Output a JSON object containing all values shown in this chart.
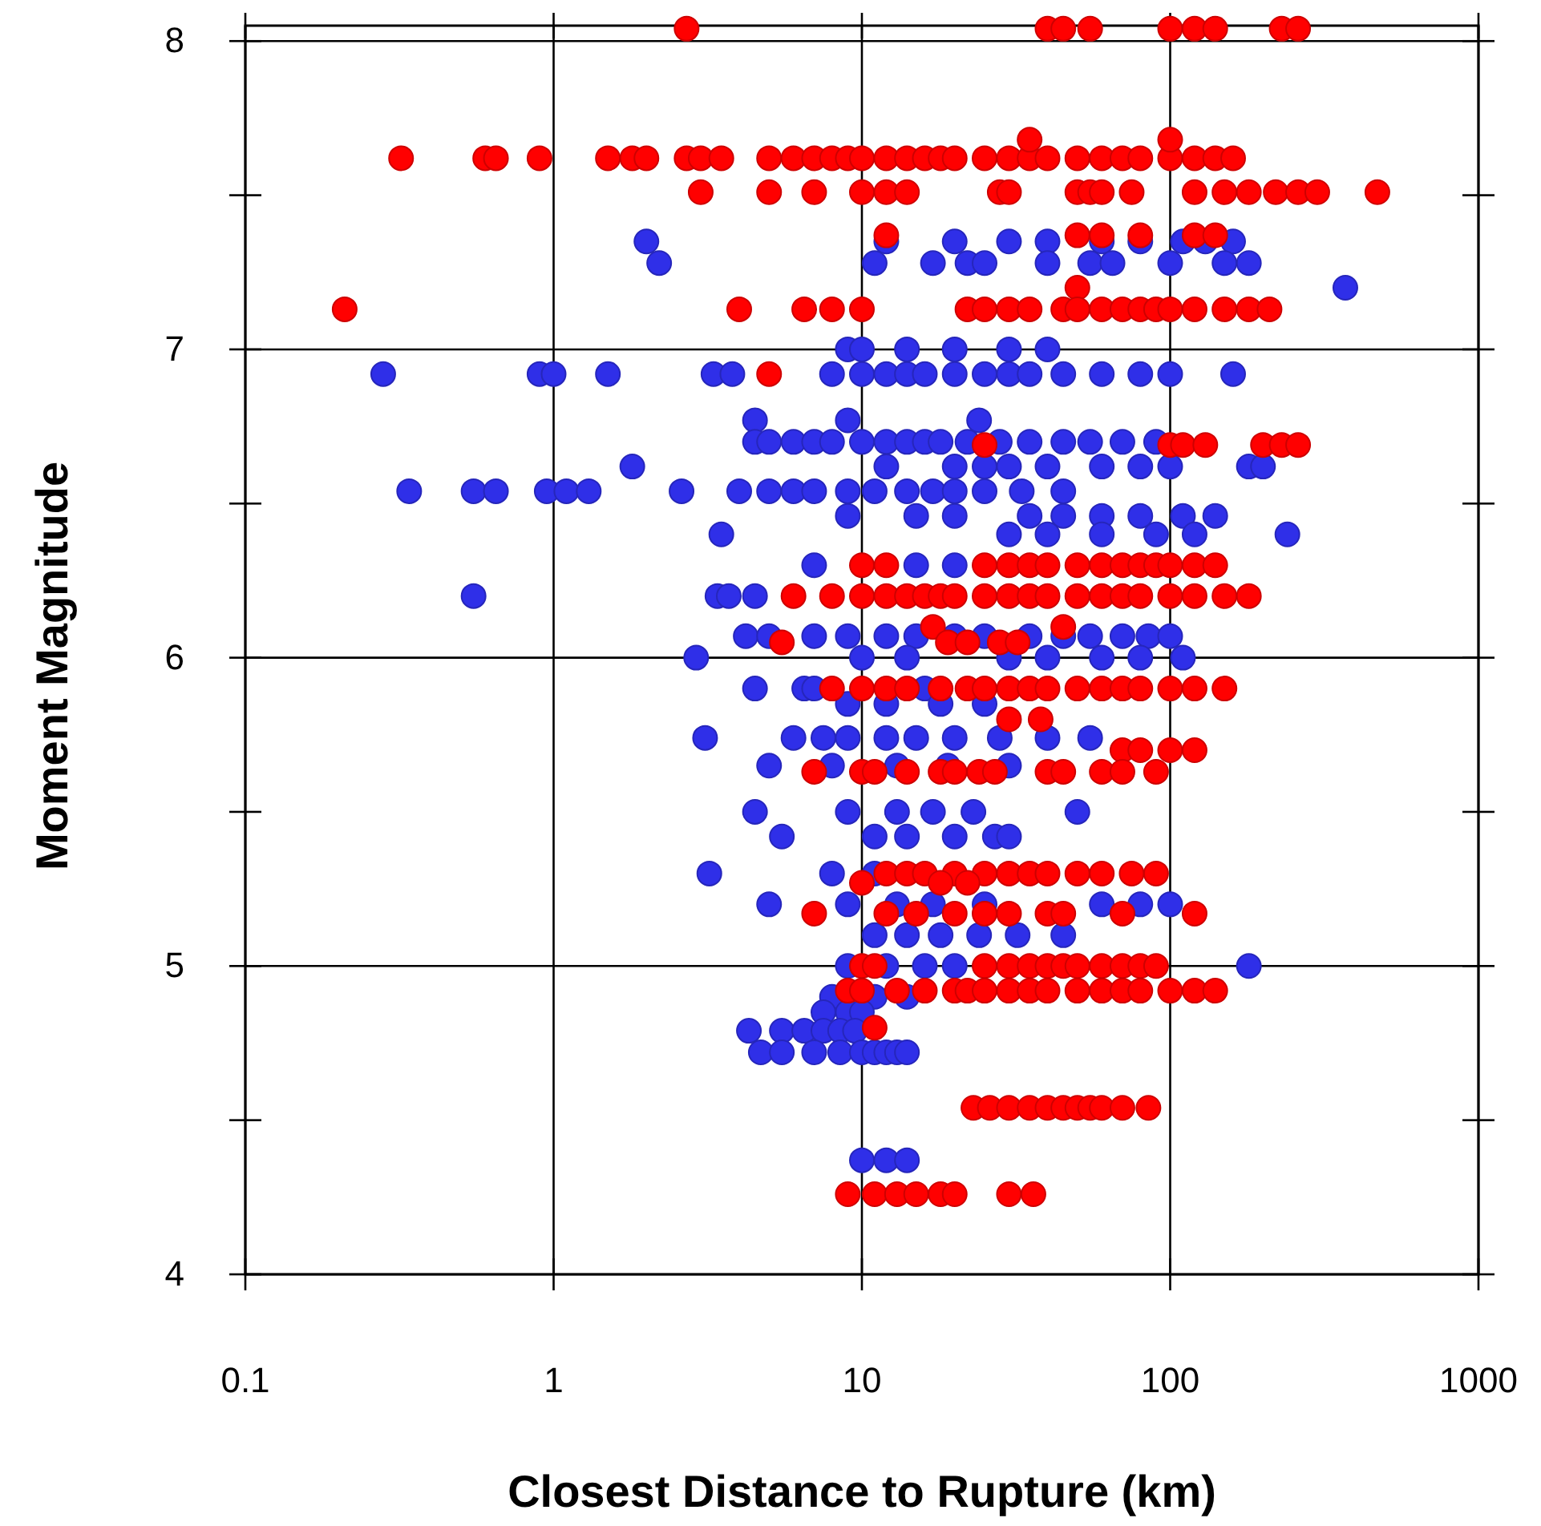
{
  "chart_data": {
    "type": "scatter",
    "xlabel": "Closest Distance to Rupture (km)",
    "ylabel": "Moment Magnitude",
    "log": "x",
    "grid": true,
    "marker": "circle",
    "xlim": [
      0.1,
      1000
    ],
    "xticks": [
      0.1,
      1,
      10,
      100,
      1000
    ],
    "ylim": [
      4,
      8.05
    ],
    "yticks": [
      4,
      {
        "value": 4.5,
        "label": null
      },
      5,
      {
        "value": 5.5,
        "label": null
      },
      6,
      {
        "value": 6.5,
        "label": null
      },
      7,
      {
        "value": 7.5,
        "label": null
      },
      8
    ],
    "series": [
      {
        "color": "#2f2fe8",
        "x": [
          2,
          12,
          20,
          30,
          40,
          60,
          80,
          110,
          130,
          160,
          2.2,
          11,
          17,
          22,
          25,
          40,
          55,
          65,
          100,
          150,
          180,
          370,
          9,
          10,
          14,
          20,
          30,
          40,
          0.28,
          0.9,
          1,
          1.5,
          3.3,
          3.8,
          8,
          10,
          12,
          14,
          16,
          20,
          25,
          30,
          35,
          45,
          60,
          80,
          100,
          160,
          4.5,
          9,
          24,
          4.5,
          5,
          6,
          7,
          8,
          10,
          12,
          14,
          16,
          18,
          22,
          28,
          35,
          45,
          55,
          70,
          90,
          1.8,
          12,
          20,
          25,
          30,
          40,
          60,
          80,
          100,
          180,
          200,
          0.34,
          0.55,
          0.65,
          0.95,
          1.1,
          1.3,
          2.6,
          4,
          5,
          6,
          7,
          9,
          11,
          14,
          17,
          20,
          25,
          33,
          45,
          9,
          15,
          20,
          35,
          45,
          60,
          80,
          110,
          140,
          3.5,
          30,
          40,
          60,
          90,
          120,
          240,
          7,
          15,
          20,
          0.55,
          3.4,
          3.7,
          4.5,
          4.2,
          5,
          7,
          9,
          12,
          15,
          20,
          25,
          35,
          45,
          55,
          70,
          85,
          100,
          2.9,
          10,
          14,
          30,
          40,
          60,
          80,
          110,
          4.5,
          6.5,
          7,
          16,
          9,
          12,
          18,
          25,
          3.1,
          6,
          7.5,
          9,
          12,
          15,
          20,
          28,
          40,
          55,
          5,
          8,
          13,
          19,
          30,
          4.5,
          9,
          13,
          17,
          23,
          50,
          5.5,
          11,
          14,
          20,
          27,
          30,
          3.2,
          8,
          11,
          5,
          9,
          13,
          17,
          25,
          60,
          80,
          100,
          11,
          14,
          18,
          24,
          32,
          45,
          9,
          12,
          16,
          20,
          180,
          8,
          11,
          14,
          7.5,
          9,
          10,
          4.3,
          5.5,
          6.5,
          7.5,
          8.5,
          9.5,
          4.7,
          5.5,
          7,
          8.5,
          10,
          11,
          12,
          13,
          14,
          10,
          12,
          14
        ],
        "values": [
          7.35,
          7.35,
          7.35,
          7.35,
          7.35,
          7.35,
          7.35,
          7.35,
          7.35,
          7.35,
          7.28,
          7.28,
          7.28,
          7.28,
          7.28,
          7.28,
          7.28,
          7.28,
          7.28,
          7.28,
          7.28,
          7.2,
          7.0,
          7.0,
          7.0,
          7.0,
          7.0,
          7.0,
          6.92,
          6.92,
          6.92,
          6.92,
          6.92,
          6.92,
          6.92,
          6.92,
          6.92,
          6.92,
          6.92,
          6.92,
          6.92,
          6.92,
          6.92,
          6.92,
          6.92,
          6.92,
          6.92,
          6.92,
          6.77,
          6.77,
          6.77,
          6.7,
          6.7,
          6.7,
          6.7,
          6.7,
          6.7,
          6.7,
          6.7,
          6.7,
          6.7,
          6.7,
          6.7,
          6.7,
          6.7,
          6.7,
          6.7,
          6.7,
          6.62,
          6.62,
          6.62,
          6.62,
          6.62,
          6.62,
          6.62,
          6.62,
          6.62,
          6.62,
          6.62,
          6.54,
          6.54,
          6.54,
          6.54,
          6.54,
          6.54,
          6.54,
          6.54,
          6.54,
          6.54,
          6.54,
          6.54,
          6.54,
          6.54,
          6.54,
          6.54,
          6.54,
          6.54,
          6.54,
          6.46,
          6.46,
          6.46,
          6.46,
          6.46,
          6.46,
          6.46,
          6.46,
          6.46,
          6.4,
          6.4,
          6.4,
          6.4,
          6.4,
          6.4,
          6.4,
          6.3,
          6.3,
          6.3,
          6.2,
          6.2,
          6.2,
          6.2,
          6.07,
          6.07,
          6.07,
          6.07,
          6.07,
          6.07,
          6.07,
          6.07,
          6.07,
          6.07,
          6.07,
          6.07,
          6.07,
          6.07,
          6.0,
          6.0,
          6.0,
          6.0,
          6.0,
          6.0,
          6.0,
          6.0,
          5.9,
          5.9,
          5.9,
          5.9,
          5.85,
          5.85,
          5.85,
          5.85,
          5.74,
          5.74,
          5.74,
          5.74,
          5.74,
          5.74,
          5.74,
          5.74,
          5.74,
          5.74,
          5.65,
          5.65,
          5.65,
          5.65,
          5.65,
          5.5,
          5.5,
          5.5,
          5.5,
          5.5,
          5.5,
          5.42,
          5.42,
          5.42,
          5.42,
          5.42,
          5.42,
          5.3,
          5.3,
          5.3,
          5.2,
          5.2,
          5.2,
          5.2,
          5.2,
          5.2,
          5.2,
          5.2,
          5.1,
          5.1,
          5.1,
          5.1,
          5.1,
          5.1,
          5.0,
          5.0,
          5.0,
          5.0,
          5.0,
          4.9,
          4.9,
          4.9,
          4.85,
          4.85,
          4.85,
          4.79,
          4.79,
          4.79,
          4.79,
          4.79,
          4.79,
          4.72,
          4.72,
          4.72,
          4.72,
          4.72,
          4.72,
          4.72,
          4.72,
          4.72,
          4.37,
          4.37,
          4.37
        ]
      },
      {
        "color": "#ff0000",
        "x": [
          2.7,
          40,
          45,
          55,
          100,
          120,
          140,
          230,
          260,
          0.32,
          0.6,
          0.65,
          0.9,
          1.5,
          1.8,
          2,
          2.7,
          3,
          3.5,
          5,
          6,
          7,
          8,
          9,
          10,
          12,
          14,
          16,
          18,
          20,
          25,
          30,
          35,
          40,
          50,
          60,
          70,
          80,
          100,
          120,
          140,
          160,
          35,
          100,
          3,
          5,
          7,
          10,
          12,
          14,
          28,
          30,
          50,
          55,
          60,
          75,
          120,
          150,
          180,
          220,
          260,
          300,
          470,
          12,
          50,
          60,
          80,
          120,
          140,
          50,
          0.21,
          4,
          6.5,
          8,
          10,
          22,
          25,
          30,
          35,
          45,
          50,
          60,
          70,
          80,
          90,
          100,
          120,
          150,
          180,
          210,
          5,
          25,
          100,
          110,
          130,
          200,
          230,
          260,
          10,
          12,
          25,
          30,
          35,
          40,
          50,
          60,
          70,
          80,
          90,
          100,
          120,
          140,
          6,
          8,
          10,
          12,
          14,
          16,
          18,
          20,
          25,
          30,
          35,
          40,
          50,
          60,
          70,
          80,
          100,
          120,
          150,
          180,
          17,
          45,
          5.5,
          19,
          22,
          28,
          32,
          8,
          10,
          12,
          14,
          18,
          22,
          25,
          30,
          35,
          40,
          50,
          60,
          70,
          80,
          100,
          120,
          150,
          30,
          38,
          70,
          80,
          100,
          120,
          7,
          10,
          11,
          14,
          18,
          20,
          24,
          27,
          40,
          45,
          60,
          70,
          90,
          12,
          14,
          16,
          20,
          25,
          30,
          35,
          40,
          50,
          60,
          75,
          90,
          10,
          18,
          22,
          7,
          12,
          15,
          20,
          25,
          30,
          40,
          45,
          70,
          120,
          10,
          11,
          25,
          30,
          35,
          40,
          45,
          50,
          60,
          70,
          80,
          90,
          9,
          10,
          13,
          16,
          20,
          22,
          25,
          30,
          35,
          40,
          50,
          60,
          70,
          80,
          100,
          120,
          140,
          11,
          23,
          26,
          30,
          35,
          40,
          45,
          50,
          55,
          60,
          70,
          85,
          9,
          11,
          13,
          15,
          18,
          20,
          30,
          36
        ],
        "values": [
          8.04,
          8.04,
          8.04,
          8.04,
          8.04,
          8.04,
          8.04,
          8.04,
          8.04,
          7.62,
          7.62,
          7.62,
          7.62,
          7.62,
          7.62,
          7.62,
          7.62,
          7.62,
          7.62,
          7.62,
          7.62,
          7.62,
          7.62,
          7.62,
          7.62,
          7.62,
          7.62,
          7.62,
          7.62,
          7.62,
          7.62,
          7.62,
          7.62,
          7.62,
          7.62,
          7.62,
          7.62,
          7.62,
          7.62,
          7.62,
          7.62,
          7.62,
          7.68,
          7.68,
          7.51,
          7.51,
          7.51,
          7.51,
          7.51,
          7.51,
          7.51,
          7.51,
          7.51,
          7.51,
          7.51,
          7.51,
          7.51,
          7.51,
          7.51,
          7.51,
          7.51,
          7.51,
          7.51,
          7.37,
          7.37,
          7.37,
          7.37,
          7.37,
          7.37,
          7.2,
          7.13,
          7.13,
          7.13,
          7.13,
          7.13,
          7.13,
          7.13,
          7.13,
          7.13,
          7.13,
          7.13,
          7.13,
          7.13,
          7.13,
          7.13,
          7.13,
          7.13,
          7.13,
          7.13,
          7.13,
          6.92,
          6.69,
          6.69,
          6.69,
          6.69,
          6.69,
          6.69,
          6.69,
          6.3,
          6.3,
          6.3,
          6.3,
          6.3,
          6.3,
          6.3,
          6.3,
          6.3,
          6.3,
          6.3,
          6.3,
          6.3,
          6.3,
          6.2,
          6.2,
          6.2,
          6.2,
          6.2,
          6.2,
          6.2,
          6.2,
          6.2,
          6.2,
          6.2,
          6.2,
          6.2,
          6.2,
          6.2,
          6.2,
          6.2,
          6.2,
          6.2,
          6.2,
          6.1,
          6.1,
          6.05,
          6.05,
          6.05,
          6.05,
          6.05,
          5.9,
          5.9,
          5.9,
          5.9,
          5.9,
          5.9,
          5.9,
          5.9,
          5.9,
          5.9,
          5.9,
          5.9,
          5.9,
          5.9,
          5.9,
          5.9,
          5.9,
          5.8,
          5.8,
          5.7,
          5.7,
          5.7,
          5.7,
          5.63,
          5.63,
          5.63,
          5.63,
          5.63,
          5.63,
          5.63,
          5.63,
          5.63,
          5.63,
          5.63,
          5.63,
          5.63,
          5.3,
          5.3,
          5.3,
          5.3,
          5.3,
          5.3,
          5.3,
          5.3,
          5.3,
          5.3,
          5.3,
          5.3,
          5.27,
          5.27,
          5.27,
          5.17,
          5.17,
          5.17,
          5.17,
          5.17,
          5.17,
          5.17,
          5.17,
          5.17,
          5.17,
          5.0,
          5.0,
          5.0,
          5.0,
          5.0,
          5.0,
          5.0,
          5.0,
          5.0,
          5.0,
          5.0,
          5.0,
          4.92,
          4.92,
          4.92,
          4.92,
          4.92,
          4.92,
          4.92,
          4.92,
          4.92,
          4.92,
          4.92,
          4.92,
          4.92,
          4.92,
          4.92,
          4.92,
          4.92,
          4.8,
          4.54,
          4.54,
          4.54,
          4.54,
          4.54,
          4.54,
          4.54,
          4.54,
          4.54,
          4.54,
          4.54,
          4.26,
          4.26,
          4.26,
          4.26,
          4.26,
          4.26,
          4.26,
          4.26
        ]
      }
    ]
  }
}
